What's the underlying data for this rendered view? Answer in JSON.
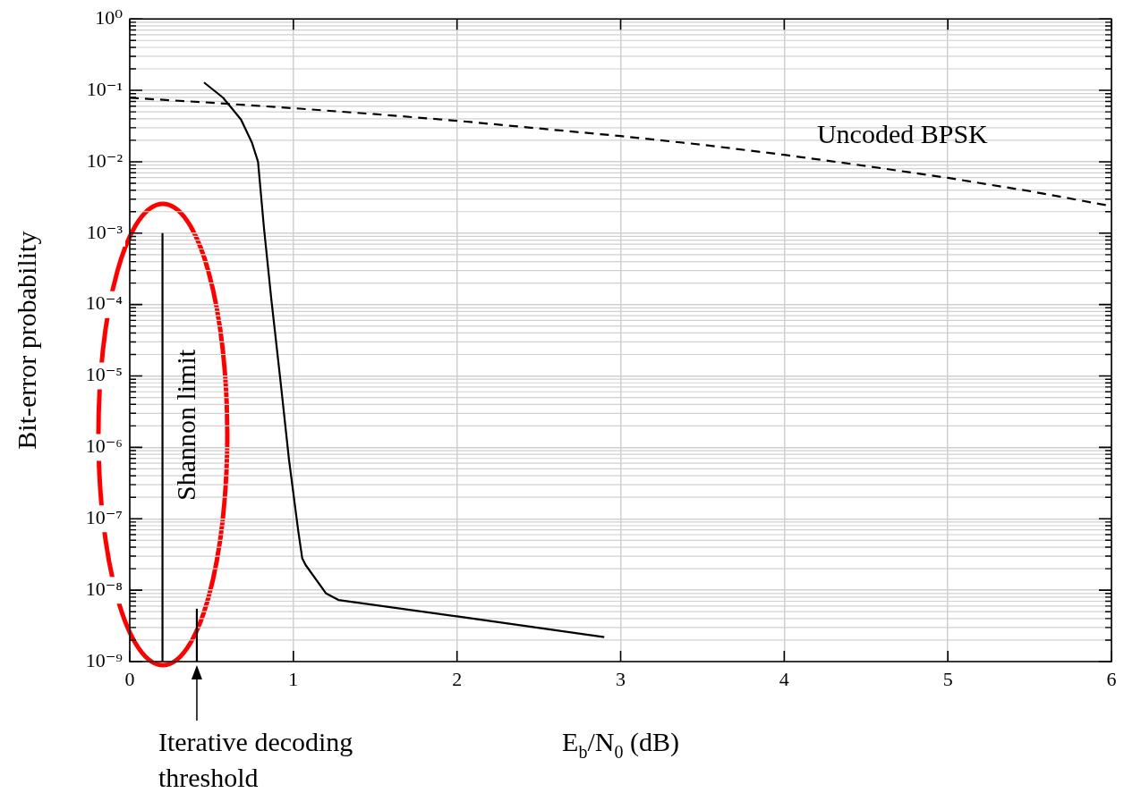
{
  "chart_data": {
    "type": "line",
    "xlabel": "E$_{b}$/N$_{0}$ (dB)",
    "ylabel": "Bit-error probability",
    "xlim": [
      0,
      6
    ],
    "xticks": [
      0,
      1,
      2,
      3,
      4,
      5,
      6
    ],
    "ylim": [
      1e-09,
      1
    ],
    "yticks": [
      {
        "value": 1e-09,
        "label": "10⁻⁹"
      },
      {
        "value": 1e-08,
        "label": "10⁻⁸"
      },
      {
        "value": 1e-07,
        "label": "10⁻⁷"
      },
      {
        "value": 1e-06,
        "label": "10⁻⁶"
      },
      {
        "value": 1e-05,
        "label": "10⁻⁵"
      },
      {
        "value": 0.0001,
        "label": "10⁻⁴"
      },
      {
        "value": 0.001,
        "label": "10⁻³"
      },
      {
        "value": 0.01,
        "label": "10⁻²"
      },
      {
        "value": 0.1,
        "label": "10⁻¹"
      },
      {
        "value": 1,
        "label": "10⁰"
      }
    ],
    "log": "y",
    "grid": true,
    "legend": false,
    "marker": "none",
    "series": [
      {
        "name": "Uncoded BPSK",
        "color": "#000000",
        "line_style": "dashed",
        "x": [
          0,
          0.5,
          1,
          1.5,
          2,
          2.5,
          3,
          3.5,
          4,
          4.5,
          5,
          5.5,
          6
        ],
        "values": [
          0.0786,
          0.0671,
          0.0563,
          0.0464,
          0.0375,
          0.0293,
          0.0229,
          0.0173,
          0.0125,
          0.00873,
          0.00595,
          0.00388,
          0.00239
        ]
      },
      {
        "color": "#000000",
        "line_style": "solid",
        "x": [
          0.454,
          0.57,
          0.68,
          0.746,
          0.784,
          0.82,
          0.865,
          0.92,
          0.973,
          1.03,
          1.054,
          1.075,
          1.2,
          1.275,
          2,
          2.9
        ],
        "values": [
          0.129,
          0.079,
          0.039,
          0.0187,
          0.01,
          0.0012,
          0.00012,
          9e-06,
          6.8e-07,
          6.7e-08,
          2.8e-08,
          2.25e-08,
          9e-09,
          7.3e-09,
          4.3e-09,
          2.2e-09
        ]
      },
      {
        "name": "Shannon limit",
        "color": "#000000",
        "line_style": "solid",
        "x": [
          0.2,
          0.2
        ],
        "values": [
          1e-09,
          0.001
        ]
      },
      {
        "color": "#000000",
        "line_style": "solid",
        "x": [
          0.41,
          0.41
        ],
        "values": [
          1e-09,
          5.5e-09
        ]
      }
    ],
    "annotations": [
      {
        "text": "Iterative decoding threshold",
        "x": 0.41,
        "y": 1e-09
      }
    ]
  }
}
